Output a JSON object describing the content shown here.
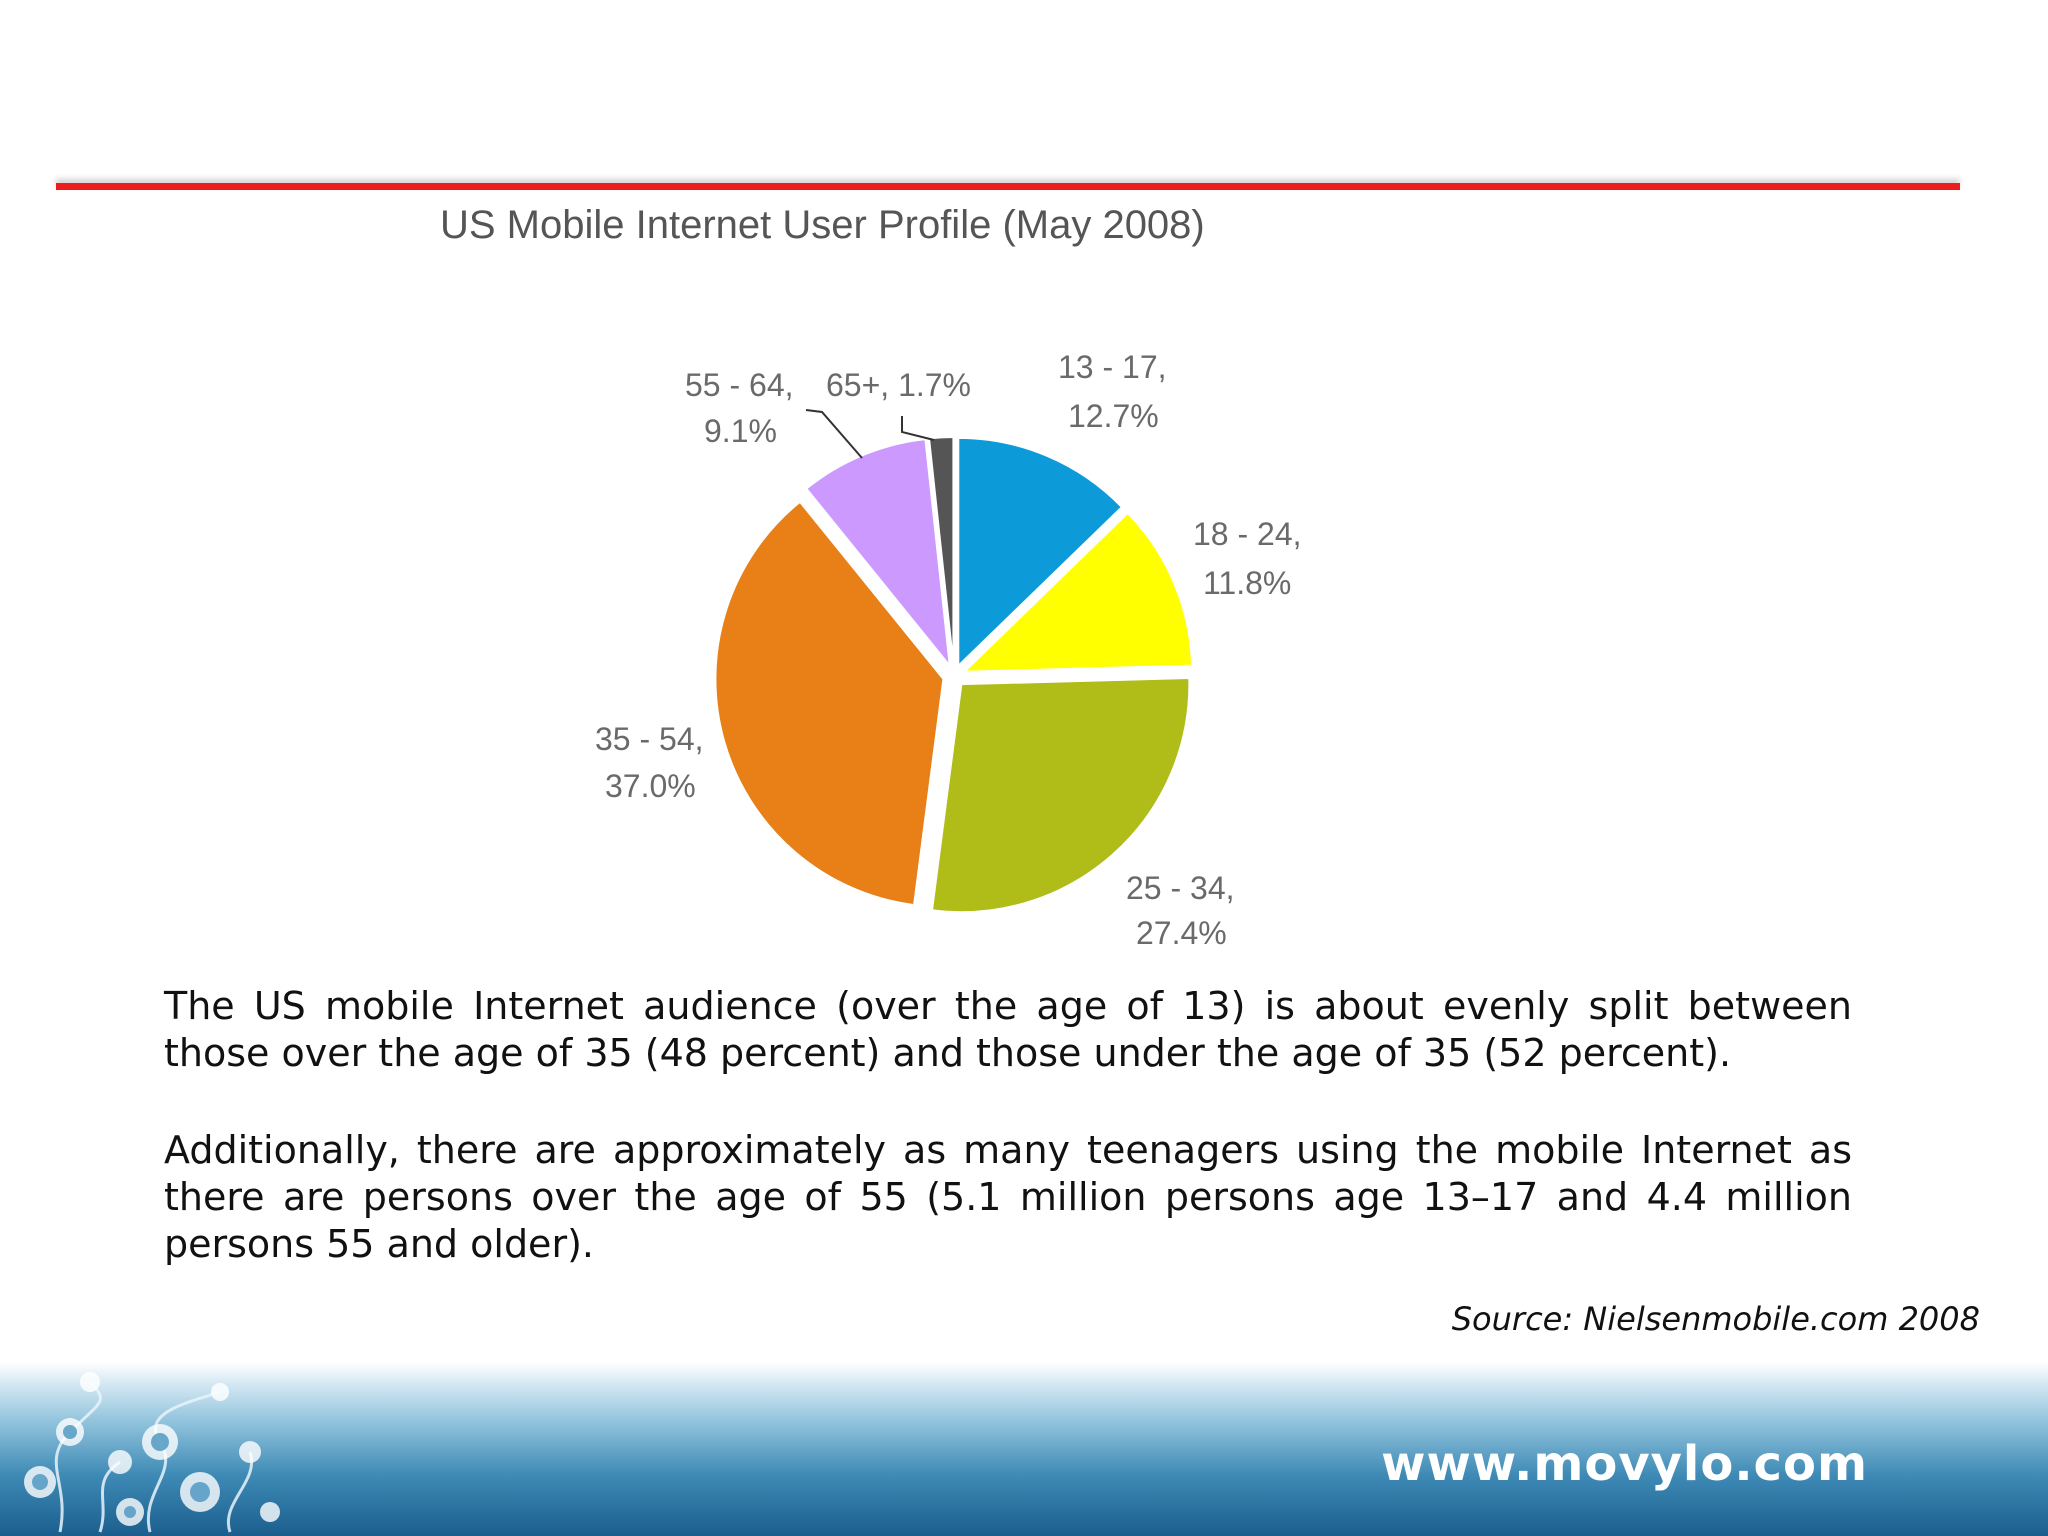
{
  "chart_data": {
    "type": "pie",
    "title": "US Mobile Internet User Profile (May 2008)",
    "slices": [
      {
        "label": "13 - 17,",
        "value_label": "12.7%",
        "value": 12.7,
        "color": "#0d9ad8"
      },
      {
        "label": "18 - 24,",
        "value_label": "11.8%",
        "value": 11.8,
        "color": "#ffff00"
      },
      {
        "label": "25 - 34,",
        "value_label": "27.4%",
        "value": 27.4,
        "color": "#b0bc18"
      },
      {
        "label": "35 - 54,",
        "value_label": "37.0%",
        "value": 37.0,
        "color": "#e87f17"
      },
      {
        "label": "55 - 64,",
        "value_label": "9.1%",
        "value": 9.1,
        "color": "#cc99ff"
      },
      {
        "label": "65+, 1.7%",
        "value_label": "",
        "value": 1.7,
        "color": "#555555"
      }
    ]
  },
  "text": {
    "paragraph1": "The US mobile Internet audience (over the age of 13) is about evenly split between those over the age of 35 (48 percent) and those under the age of 35 (52 percent).",
    "paragraph2": "Additionally, there are approximately as many teenagers using the mobile Internet as there are persons over the age of 55 (5.1 million persons age 13–17 and 4.4 million persons 55 and older).",
    "source": "Source: Nielsenmobile.com 2008"
  },
  "footer": {
    "url": "www.movylo.com",
    "gradient_top": "#d6e9f3",
    "gradient_bottom": "#1b5e8e"
  },
  "accent": {
    "rule_color": "#ee1c1c"
  }
}
